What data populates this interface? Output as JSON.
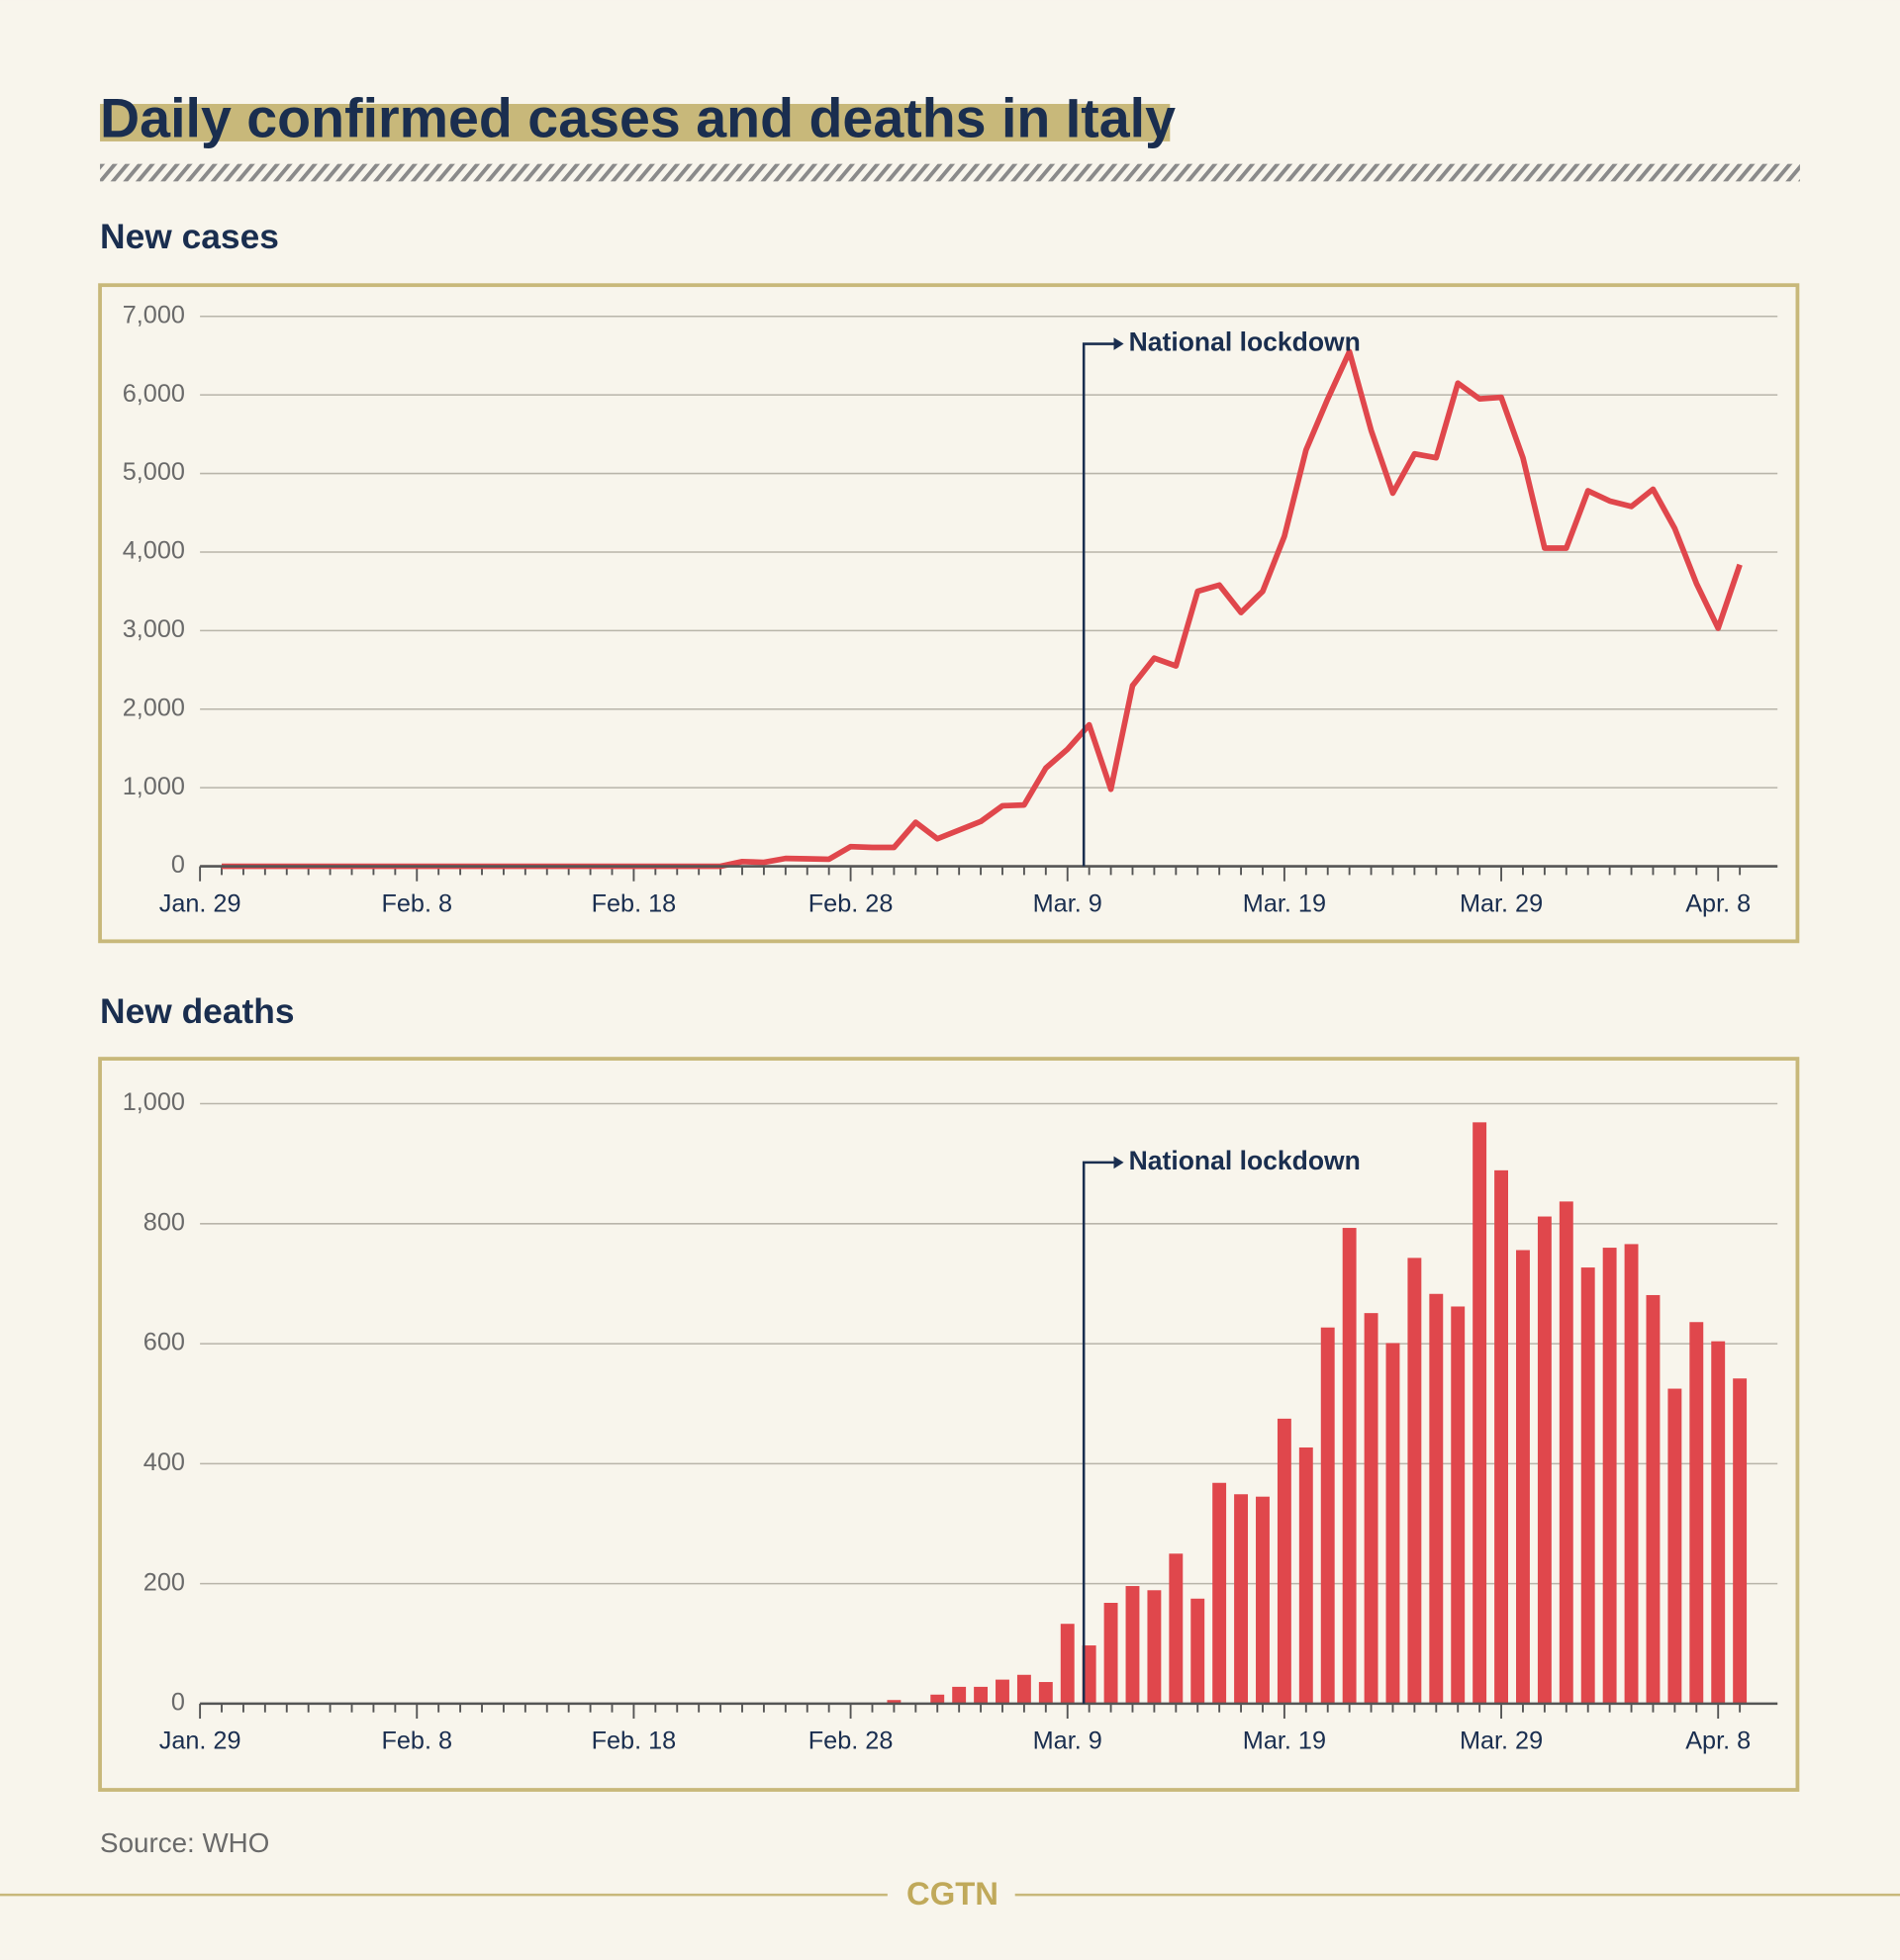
{
  "title": "Daily confirmed cases and deaths in Italy",
  "source": "Source: WHO",
  "brand": "CGTN",
  "chart_data": [
    {
      "type": "line",
      "title": "New cases",
      "color": "#e0474c",
      "annotation": "National lockdown",
      "categories": [
        "Jan. 29",
        null,
        null,
        null,
        null,
        null,
        null,
        null,
        null,
        null,
        "Feb. 8",
        null,
        null,
        null,
        null,
        null,
        null,
        null,
        null,
        null,
        "Feb. 18",
        null,
        null,
        null,
        null,
        null,
        null,
        null,
        null,
        null,
        "Feb. 28",
        null,
        null,
        null,
        null,
        null,
        null,
        null,
        null,
        null,
        "Mar. 9",
        null,
        null,
        null,
        null,
        null,
        null,
        null,
        null,
        null,
        "Mar. 19",
        null,
        null,
        null,
        null,
        null,
        null,
        null,
        null,
        null,
        "Mar. 29",
        null,
        null,
        null,
        null,
        null,
        null,
        null,
        null,
        null,
        "Apr. 8",
        null
      ],
      "values": [
        null,
        0,
        0,
        0,
        0,
        0,
        0,
        0,
        0,
        0,
        0,
        0,
        0,
        0,
        0,
        0,
        0,
        0,
        0,
        0,
        0,
        0,
        0,
        0,
        0,
        60,
        50,
        100,
        95,
        90,
        250,
        240,
        240,
        560,
        350,
        460,
        570,
        770,
        780,
        1250,
        1490,
        1800,
        980,
        2300,
        2650,
        2550,
        3500,
        3580,
        3230,
        3500,
        4200,
        5300,
        5950,
        6550,
        5550,
        4750,
        5250,
        5200,
        6150,
        5950,
        5970,
        5200,
        4050,
        4050,
        4780,
        4650,
        4580,
        4800,
        4300,
        3600,
        3030,
        3840
      ],
      "ylim": [
        0,
        7000
      ],
      "yticks": [
        0,
        {
          "value": 1000,
          "label": "1,000"
        },
        {
          "value": 2000,
          "label": "2,000"
        },
        {
          "value": 3000,
          "label": "3,000"
        },
        {
          "value": 4000,
          "label": "4,000"
        },
        {
          "value": 5000,
          "label": "5,000"
        },
        {
          "value": 6000,
          "label": "6,000"
        },
        {
          "value": 7000,
          "label": "7,000"
        }
      ],
      "grid": true
    },
    {
      "type": "bar",
      "title": "New deaths",
      "color": "#e0474c",
      "annotation": "National lockdown",
      "categories": [
        "Jan. 29",
        null,
        null,
        null,
        null,
        null,
        null,
        null,
        null,
        null,
        "Feb. 8",
        null,
        null,
        null,
        null,
        null,
        null,
        null,
        null,
        null,
        "Feb. 18",
        null,
        null,
        null,
        null,
        null,
        null,
        null,
        null,
        null,
        "Feb. 28",
        null,
        null,
        null,
        null,
        null,
        null,
        null,
        null,
        null,
        "Mar. 9",
        null,
        null,
        null,
        null,
        null,
        null,
        null,
        null,
        null,
        "Mar. 19",
        null,
        null,
        null,
        null,
        null,
        null,
        null,
        null,
        null,
        "Mar. 29",
        null,
        null,
        null,
        null,
        null,
        null,
        null,
        null,
        null,
        "Apr. 8",
        null
      ],
      "values": [
        null,
        0,
        0,
        0,
        0,
        0,
        0,
        0,
        0,
        0,
        0,
        0,
        0,
        0,
        0,
        0,
        0,
        0,
        0,
        0,
        0,
        0,
        0,
        0,
        0,
        0,
        0,
        0,
        0,
        0,
        0,
        0,
        6,
        0,
        15,
        28,
        28,
        40,
        48,
        36,
        133,
        97,
        168,
        196,
        189,
        250,
        175,
        368,
        349,
        345,
        475,
        427,
        627,
        793,
        651,
        601,
        743,
        683,
        662,
        969,
        889,
        756,
        812,
        837,
        727,
        760,
        766,
        681,
        525,
        636,
        604,
        542
      ],
      "ylim": [
        0,
        1000
      ],
      "yticks": [
        0,
        200,
        400,
        600,
        800,
        {
          "value": 1000,
          "label": "1,000"
        }
      ],
      "grid": true
    }
  ]
}
